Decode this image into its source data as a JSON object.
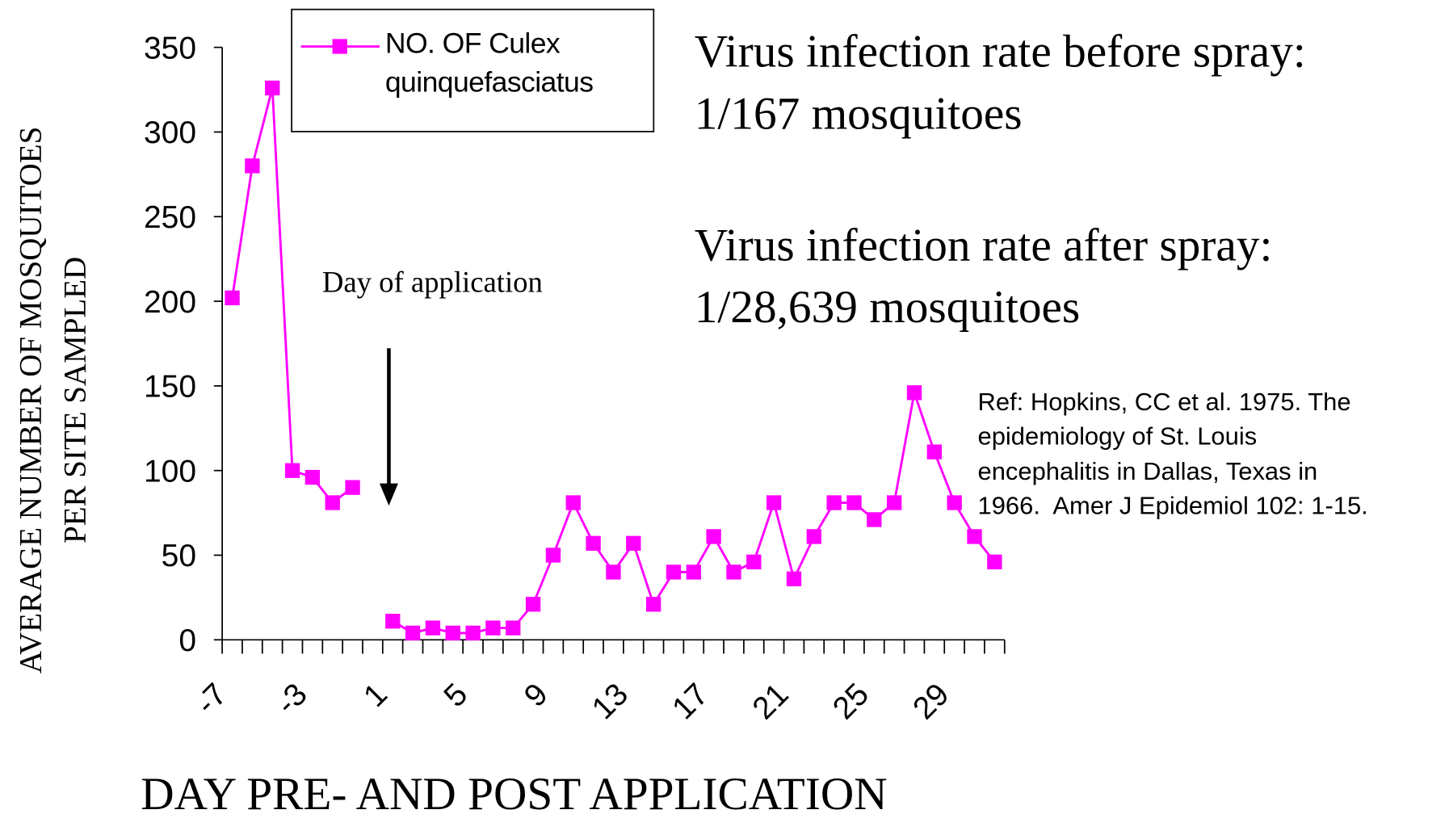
{
  "chart_data": {
    "type": "line",
    "ylabel": [
      "AVERAGE NUMBER OF MOSQUITOES",
      "PER SITE SAMPLED"
    ],
    "xlabel": "DAY PRE- AND POST APPLICATION",
    "categories": [
      "-7",
      null,
      null,
      null,
      "-3",
      null,
      null,
      null,
      "1",
      null,
      null,
      null,
      "5",
      null,
      null,
      null,
      "9",
      null,
      null,
      null,
      "13",
      null,
      null,
      null,
      "17",
      null,
      null,
      null,
      "21",
      null,
      null,
      null,
      "25",
      null,
      null,
      null,
      "29",
      null,
      null
    ],
    "series": [
      {
        "name": "NO. OF Culex quinquefasciatus",
        "color": "#ff00ff",
        "values": [
          202,
          280,
          326,
          100,
          96,
          81,
          90,
          null,
          11,
          4,
          7,
          4,
          4,
          7,
          7,
          21,
          50,
          81,
          57,
          40,
          57,
          21,
          40,
          40,
          61,
          40,
          46,
          81,
          36,
          61,
          81,
          81,
          71,
          81,
          146,
          111,
          81,
          61,
          46
        ]
      }
    ],
    "ylim": [
      0,
      350
    ],
    "yticks": [
      0,
      50,
      100,
      150,
      200,
      250,
      300,
      350
    ],
    "annotations": {
      "application": "Day of application",
      "before": [
        "Virus infection rate before spray:",
        "1/167 mosquitoes"
      ],
      "after": [
        "Virus infection rate after spray:",
        "1/28,639 mosquitoes"
      ],
      "reference": [
        "Ref: Hopkins, CC et al. 1975. The",
        "epidemiology of St. Louis",
        "encephalitis in Dallas, Texas in",
        "1966.  Amer J Epidemiol 102: 1-15."
      ]
    }
  }
}
